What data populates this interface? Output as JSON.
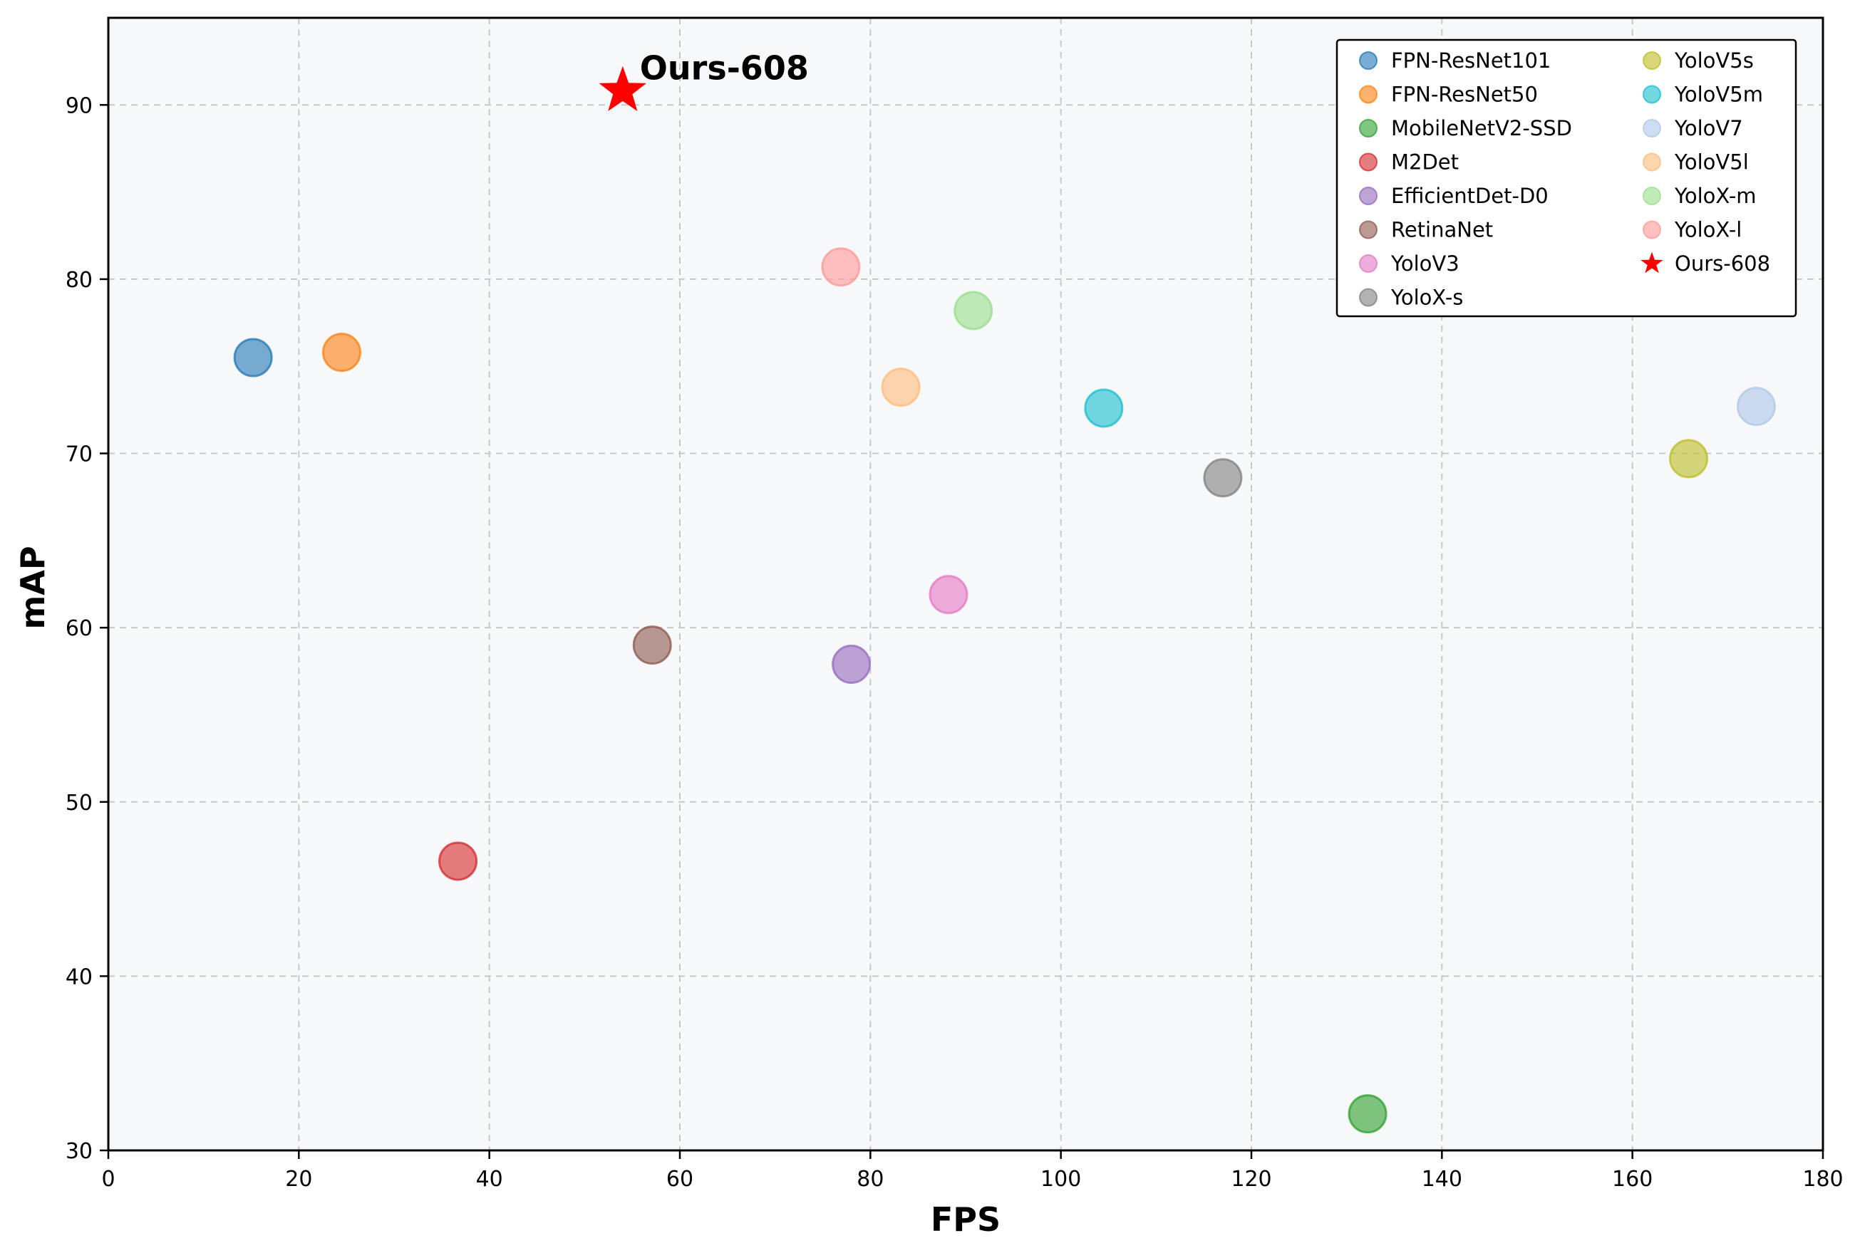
{
  "chart_data": {
    "type": "scatter",
    "title": "",
    "xlabel": "FPS",
    "ylabel": "mAP",
    "xlim": [
      0,
      180
    ],
    "ylim": [
      30,
      95
    ],
    "x_ticks": [
      0,
      20,
      40,
      60,
      80,
      100,
      120,
      140,
      160,
      180
    ],
    "y_ticks": [
      30,
      40,
      50,
      60,
      70,
      80,
      90
    ],
    "grid": true,
    "legend_position": "top-right",
    "legend_columns": 2,
    "annotation": {
      "text": "Ours-608",
      "target": "Ours-608"
    },
    "series": [
      {
        "name": "FPN-ResNet101",
        "color": "#1f77b4",
        "marker": "circle",
        "x": 15.2,
        "y": 75.5
      },
      {
        "name": "FPN-ResNet50",
        "color": "#ff7f0e",
        "marker": "circle",
        "x": 24.5,
        "y": 75.8
      },
      {
        "name": "MobileNetV2-SSD",
        "color": "#2ca02c",
        "marker": "circle",
        "x": 132.2,
        "y": 32.1
      },
      {
        "name": "M2Det",
        "color": "#d62728",
        "marker": "circle",
        "x": 36.7,
        "y": 46.6
      },
      {
        "name": "EfficientDet-D0",
        "color": "#9467bd",
        "marker": "circle",
        "x": 78.0,
        "y": 57.9
      },
      {
        "name": "RetinaNet",
        "color": "#8c564b",
        "marker": "circle",
        "x": 57.1,
        "y": 59.0
      },
      {
        "name": "YoloV3",
        "color": "#e377c2",
        "marker": "circle",
        "x": 88.2,
        "y": 61.9
      },
      {
        "name": "YoloX-s",
        "color": "#7f7f7f",
        "marker": "circle",
        "x": 117.0,
        "y": 68.6
      },
      {
        "name": "YoloV5s",
        "color": "#bcbd22",
        "marker": "circle",
        "x": 165.9,
        "y": 69.7
      },
      {
        "name": "YoloV5m",
        "color": "#17becf",
        "marker": "circle",
        "x": 104.5,
        "y": 72.6
      },
      {
        "name": "YoloV7",
        "color": "#aec7e8",
        "marker": "circle",
        "x": 173.0,
        "y": 72.7
      },
      {
        "name": "YoloV5l",
        "color": "#ffbb78",
        "marker": "circle",
        "x": 83.2,
        "y": 73.8
      },
      {
        "name": "YoloX-m",
        "color": "#98df8a",
        "marker": "circle",
        "x": 90.8,
        "y": 78.2
      },
      {
        "name": "YoloX-l",
        "color": "#ff9896",
        "marker": "circle",
        "x": 76.9,
        "y": 80.7
      },
      {
        "name": "Ours-608",
        "color": "#ff0000",
        "marker": "star",
        "x": 54.0,
        "y": 90.8
      }
    ]
  }
}
